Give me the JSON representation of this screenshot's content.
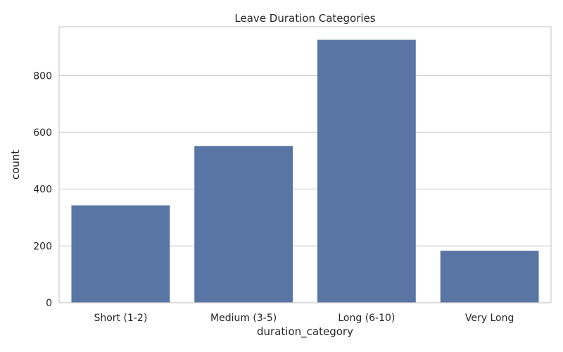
{
  "chart_data": {
    "type": "bar",
    "title": "Leave Duration Categories",
    "xlabel": "duration_category",
    "ylabel": "count",
    "categories": [
      "Short (1-2)",
      "Medium (3-5)",
      "Long (6-10)",
      "Very Long"
    ],
    "values": [
      343,
      552,
      926,
      183
    ],
    "ylim": [
      0,
      972
    ],
    "yticks": [
      0,
      200,
      400,
      600,
      800
    ],
    "grid": true,
    "legend": "none",
    "colors": {
      "bar": "#5975a4",
      "grid": "#cccccc",
      "axes_edge": "#cccccc",
      "text": "#262626",
      "background": "#ffffff"
    }
  }
}
